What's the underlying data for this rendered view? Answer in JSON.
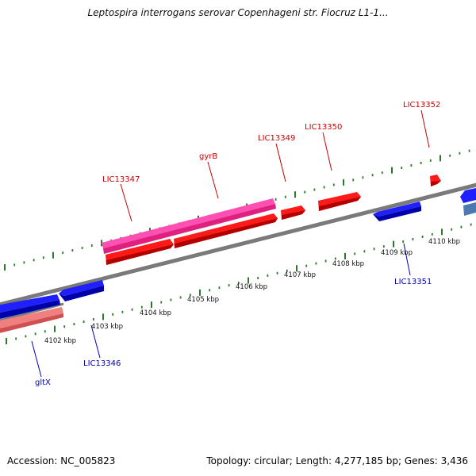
{
  "title": "Leptospira interrogans serovar Copenhageni str. Fiocruz L1-1...",
  "footer": {
    "accession": "Accession: NC_005823",
    "stats": "Topology: circular; Length: 4,277,185 bp; Genes: 3,436"
  },
  "colors": {
    "forward_gene": "#ff0000",
    "forward_gene_dark": "#b40000",
    "reverse_gene": "#0000ff",
    "reverse_gene_dark": "#0000a0",
    "highlight_gene": "#ff2f9e",
    "reverse_faded_gene": "#f08080",
    "other_gene": "#4a7ab0",
    "backbone": "#7a7a7a",
    "tick": "#2a7a2a",
    "forward_label": "#cc0000",
    "reverse_label": "#0000bb"
  },
  "scale_labels": [
    "4102 kbp",
    "4103 kbp",
    "4104 kbp",
    "4105 kbp",
    "4106 kbp",
    "4107 kbp",
    "4108 kbp",
    "4109 kbp",
    "4110 kbp"
  ],
  "forward_labels": [
    "LIC13347",
    "gyrB",
    "LIC13349",
    "LIC13350",
    "LIC13352"
  ],
  "reverse_labels": [
    "LIC13346",
    "gltX",
    "LIC13351"
  ]
}
